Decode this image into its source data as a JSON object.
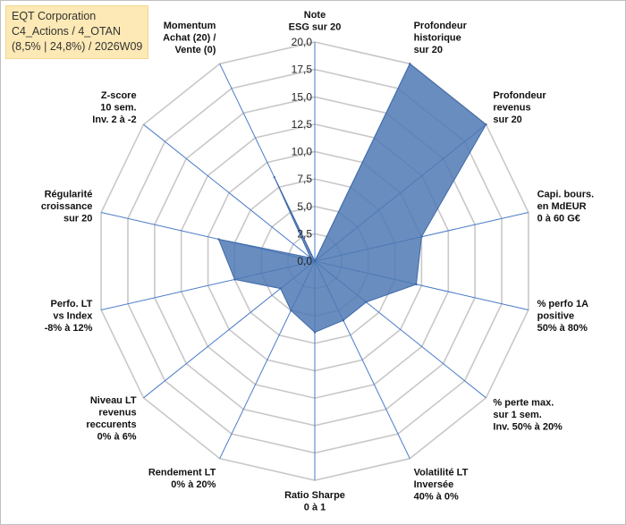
{
  "title_box": {
    "line1": "EQT Corporation",
    "line2": "C4_Actions / 4_OTAN",
    "line3": "(8,5% | 24,8%) / 2026W09"
  },
  "chart_data": {
    "type": "radar",
    "title": "EQT Corporation",
    "rmin": 0,
    "rmax": 20,
    "ticks": [
      "0,0",
      "2,5",
      "5,0",
      "7,5",
      "10,0",
      "12,5",
      "15,0",
      "17,5",
      "20,0"
    ],
    "axes": [
      [
        "Note",
        "ESG sur 20"
      ],
      [
        "Profondeur",
        "historique",
        "sur 20"
      ],
      [
        "Profondeur",
        "revenus",
        "sur 20"
      ],
      [
        "Capi. bours.",
        "en MdEUR",
        "0 à 60 G€"
      ],
      [
        "% perfo 1A",
        "positive",
        "50% à 80%"
      ],
      [
        "% perte max.",
        "sur 1 sem.",
        "Inv. 50% à 20%"
      ],
      [
        "Volatilité LT",
        "Inversée",
        "40% à 0%"
      ],
      [
        "Ratio Sharpe",
        "0 à 1"
      ],
      [
        "Rendement LT",
        "0% à 20%"
      ],
      [
        "Niveau LT",
        "revenus",
        "reccurents",
        "0% à 6%"
      ],
      [
        "Perfo. LT",
        "vs Index",
        "-8% à 12%"
      ],
      [
        "Régularité",
        "croissance",
        "sur 20"
      ],
      [
        "Z-score",
        "10 sem.",
        "Inv. 2 à -2"
      ],
      [
        "Momentum",
        "Achat (20) /",
        "Vente (0)"
      ]
    ],
    "series": [
      {
        "name": "EQT Corporation",
        "values": [
          0,
          20,
          20,
          10,
          9.5,
          6,
          6,
          6.5,
          5,
          4,
          7.5,
          9,
          0.5,
          8.5
        ],
        "color": "#4f79b4"
      }
    ],
    "grid_color": "#c8c8c8",
    "axis_color": "#4a7bc8"
  }
}
